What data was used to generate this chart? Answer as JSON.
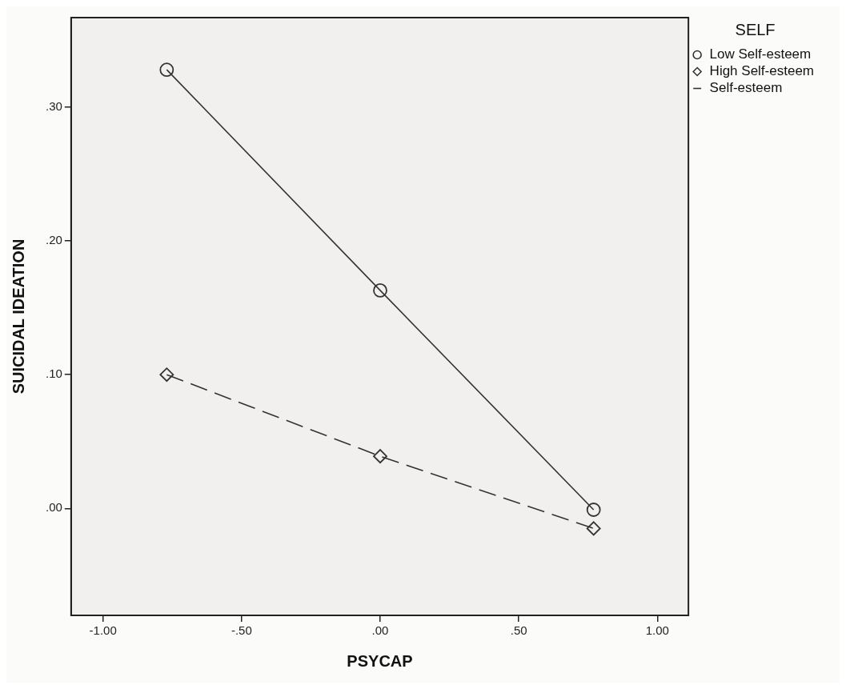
{
  "chart_data": {
    "type": "line",
    "xlabel": "PSYCAP",
    "ylabel": "SUICIDAL IDEATION",
    "legend_title": "SELF",
    "xlim": [
      -1.115,
      1.112
    ],
    "xticks": [
      {
        "value": -1,
        "label": "-1.00"
      },
      {
        "value": -0.5,
        "label": "-.50"
      },
      {
        "value": 0,
        "label": ".00"
      },
      {
        "value": 0.5,
        "label": ".50"
      },
      {
        "value": 1,
        "label": "1.00"
      }
    ],
    "ylim": [
      -0.08,
      0.367
    ],
    "yticks": [
      {
        "value": 0,
        "label": ".00"
      },
      {
        "value": 0.1,
        "label": ".10"
      },
      {
        "value": 0.2,
        "label": ".20"
      },
      {
        "value": 0.3,
        "label": ".30"
      }
    ],
    "x": [
      -0.77,
      0,
      0.77
    ],
    "series": [
      {
        "name": "Low Self-esteem",
        "type": "scatter",
        "marker": "circle",
        "color": "#333333",
        "values": [
          0.328,
          0.163,
          -0.001
        ]
      },
      {
        "name": "High Self-esteem",
        "type": "scatter",
        "marker": "diamond",
        "color": "#333333",
        "values": [
          0.1,
          0.039,
          -0.015
        ]
      },
      {
        "name": "Self-esteem",
        "type": "line",
        "marker": "none",
        "line_style": "solid",
        "color": "#333333",
        "values": [
          0.328,
          0.163,
          -0.001
        ]
      },
      {
        "type": "line",
        "marker": "none",
        "line_style": "dashed",
        "color": "#333333",
        "values": [
          0.1,
          0.039,
          -0.015
        ]
      }
    ],
    "grid": false,
    "legend": "top right"
  }
}
